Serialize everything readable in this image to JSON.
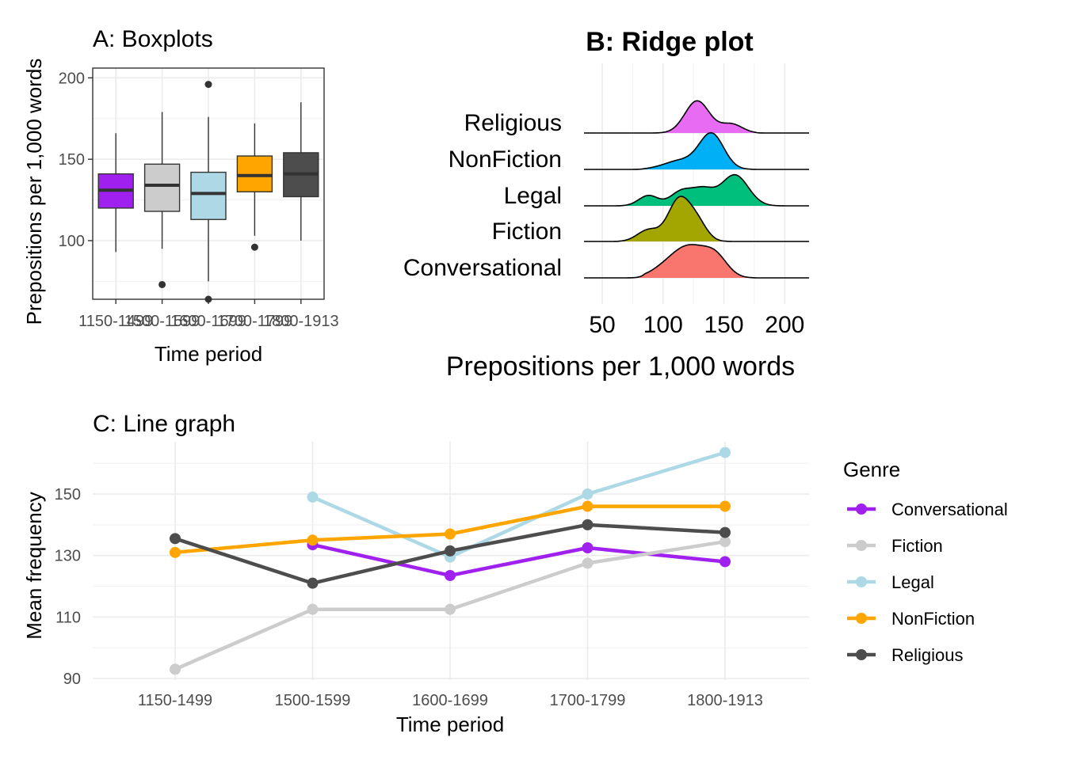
{
  "colors": {
    "Conversational": "#A020F0",
    "Fiction": "#CCCCCC",
    "Legal": "#ADD8E6",
    "NonFiction": "#FFA500",
    "Religious": "#4D4D4D",
    "ridge_Conversational": "#F8766D",
    "ridge_Fiction": "#A3A500",
    "ridge_Legal": "#00BF7D",
    "ridge_NonFiction": "#00B0F6",
    "ridge_Religious": "#E76BF3",
    "grid": "#EBEBEB",
    "axis_text": "#4D4D4D"
  },
  "chart_data": [
    {
      "id": "A",
      "type": "boxplot",
      "title": "A: Boxplots",
      "xlabel": "Time period",
      "ylabel": "Prepositions per 1,000 words",
      "categories": [
        "1150-1499",
        "1500-1599",
        "1600-1699",
        "1700-1799",
        "1800-1913"
      ],
      "y_ticks": [
        100,
        150,
        200
      ],
      "ylim": [
        64,
        206
      ],
      "grid": true,
      "boxes": [
        {
          "period": "1150-1499",
          "fill": "Conversational",
          "lower": 93,
          "q1": 120,
          "median": 131,
          "q3": 141,
          "upper": 166,
          "outliers": []
        },
        {
          "period": "1500-1599",
          "fill": "Fiction",
          "lower": 95,
          "q1": 118,
          "median": 134,
          "q3": 147,
          "upper": 179,
          "outliers": [
            73
          ]
        },
        {
          "period": "1600-1699",
          "fill": "Legal",
          "lower": 75,
          "q1": 113,
          "median": 129,
          "q3": 142,
          "upper": 176,
          "outliers": [
            64,
            196
          ]
        },
        {
          "period": "1700-1799",
          "fill": "NonFiction",
          "lower": 103,
          "q1": 130,
          "median": 140,
          "q3": 152,
          "upper": 172,
          "outliers": [
            96
          ]
        },
        {
          "period": "1800-1913",
          "fill": "Religious",
          "lower": 100,
          "q1": 127,
          "median": 141,
          "q3": 154,
          "upper": 185,
          "outliers": []
        }
      ]
    },
    {
      "id": "B",
      "type": "ridgeline",
      "title": "B: Ridge plot",
      "xlabel": "Prepositions per 1,000 words",
      "ylabel": "",
      "x_ticks": [
        50,
        100,
        150,
        200
      ],
      "xlim": [
        35,
        220
      ],
      "groups": [
        {
          "name": "Conversational",
          "peaks": [
            [
              108,
              14,
              0.6
            ],
            [
              124,
              12,
              0.85
            ],
            [
              143,
              10,
              0.8
            ]
          ],
          "support": [
            85,
            172
          ]
        },
        {
          "name": "Fiction",
          "peaks": [
            [
              88,
              9,
              0.45
            ],
            [
              113,
              9,
              1.6
            ],
            [
              128,
              8,
              0.7
            ]
          ],
          "support": [
            65,
            165
          ]
        },
        {
          "name": "Legal",
          "peaks": [
            [
              88,
              8,
              0.4
            ],
            [
              115,
              9,
              0.55
            ],
            [
              133,
              9,
              0.6
            ],
            [
              159,
              11,
              1.2
            ]
          ],
          "support": [
            60,
            200
          ]
        },
        {
          "name": "NonFiction",
          "peaks": [
            [
              115,
              14,
              0.35
            ],
            [
              140,
              10,
              1.35
            ]
          ],
          "support": [
            85,
            180
          ]
        },
        {
          "name": "Religious",
          "peaks": [
            [
              128,
              10,
              1.25
            ],
            [
              156,
              9,
              0.35
            ]
          ],
          "support": [
            90,
            175
          ]
        }
      ]
    },
    {
      "id": "C",
      "type": "line",
      "title": "C: Line graph",
      "xlabel": "Time period",
      "ylabel": "Mean frequency",
      "categories": [
        "1150-1499",
        "1500-1599",
        "1600-1699",
        "1700-1799",
        "1800-1913"
      ],
      "y_ticks": [
        90,
        110,
        130,
        150
      ],
      "ylim": [
        89.5,
        167
      ],
      "legend_title": "Genre",
      "legend_position": "right",
      "series": [
        {
          "name": "Conversational",
          "values": [
            null,
            133.5,
            123.5,
            132.5,
            128.0
          ]
        },
        {
          "name": "Fiction",
          "values": [
            93.0,
            112.5,
            112.5,
            127.5,
            134.5
          ]
        },
        {
          "name": "Legal",
          "values": [
            null,
            149.0,
            129.5,
            150.0,
            163.5
          ]
        },
        {
          "name": "NonFiction",
          "values": [
            131.0,
            135.0,
            137.0,
            146.0,
            146.0
          ]
        },
        {
          "name": "Religious",
          "values": [
            135.5,
            121.0,
            131.5,
            140.0,
            137.5
          ]
        }
      ]
    }
  ]
}
